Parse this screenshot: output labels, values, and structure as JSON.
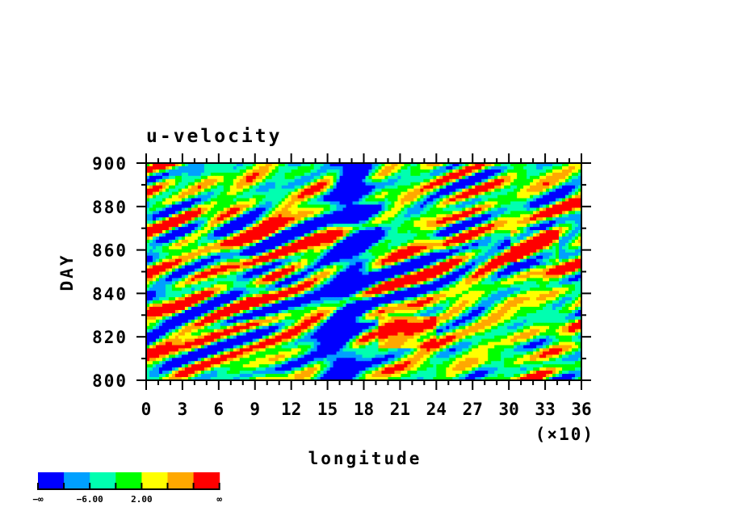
{
  "chart_data": {
    "type": "heatmap",
    "title": "u-velocity",
    "xlabel": "longitude",
    "ylabel": "DAY",
    "x_multiplier_label": "(×10)",
    "xlim": [
      0,
      36
    ],
    "ylim": [
      800,
      900
    ],
    "x_ticks": [
      "0",
      "3",
      "6",
      "9",
      "12",
      "15",
      "18",
      "21",
      "24",
      "27",
      "30",
      "33",
      "36"
    ],
    "y_ticks": [
      "800",
      "820",
      "840",
      "860",
      "880",
      "900"
    ],
    "grid": false,
    "colorbar": {
      "position": "bottom-left",
      "colors": [
        "#0000ff",
        "#00a0ff",
        "#00ffb0",
        "#00ff00",
        "#ffff00",
        "#ffa800",
        "#ff0000"
      ],
      "labels": [
        "−∞",
        "−6.00",
        "2.00",
        "∞"
      ]
    }
  }
}
